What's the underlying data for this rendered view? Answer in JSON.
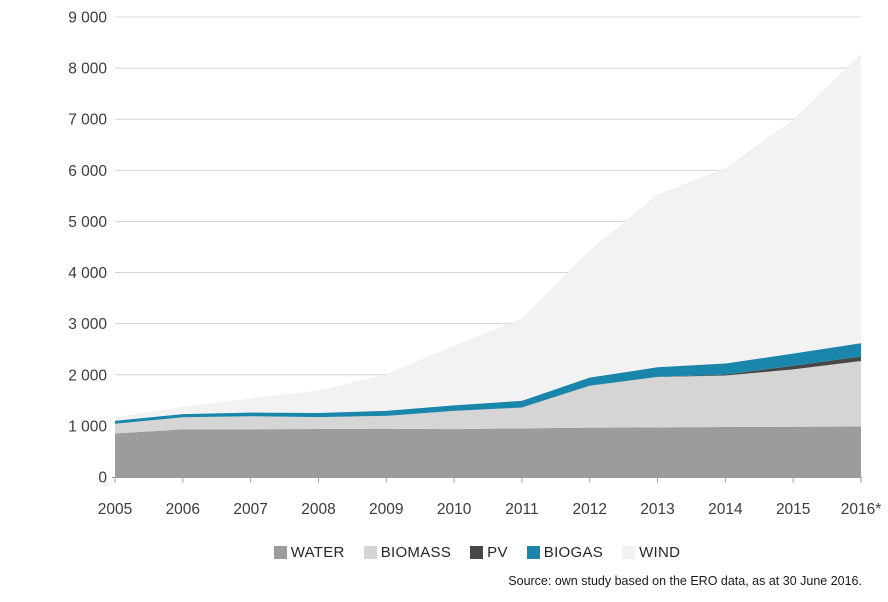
{
  "chart_data": {
    "type": "area",
    "stacked": true,
    "title": "",
    "categories": [
      "2005",
      "2006",
      "2007",
      "2008",
      "2009",
      "2010",
      "2011",
      "2012",
      "2013",
      "2014",
      "2015",
      "2016*"
    ],
    "series": [
      {
        "name": "WATER",
        "color": "#9c9c9c",
        "values": [
          852,
          931,
          934,
          940,
          945,
          937,
          951,
          966,
          971,
          977,
          982,
          989
        ]
      },
      {
        "name": "BIOMASS",
        "color": "#d5d5d5",
        "values": [
          190,
          238,
          255,
          232,
          252,
          356,
          409,
          820,
          986,
          1008,
          1123,
          1281
        ]
      },
      {
        "name": "PV",
        "color": "#474747",
        "values": [
          0,
          0,
          0,
          0,
          0,
          0,
          1,
          1,
          2,
          21,
          71,
          87
        ]
      },
      {
        "name": "BIOGAS",
        "color": "#1a86ab",
        "values": [
          32,
          36,
          45,
          54,
          71,
          82,
          103,
          131,
          162,
          188,
          212,
          234
        ]
      },
      {
        "name": "WIND",
        "color": "#f2f2f3",
        "values": [
          83,
          152,
          288,
          451,
          725,
          1180,
          1616,
          2497,
          3389,
          3834,
          4582,
          5660
        ]
      }
    ],
    "ylim": [
      0,
      9000
    ],
    "ytick_step": 1000,
    "ytick_labels": [
      "0",
      "1 000",
      "2 000",
      "3 000",
      "4 000",
      "5 000",
      "6 000",
      "7 000",
      "8 000",
      "9 000"
    ],
    "grid": "horizontal",
    "legend_position": "bottom",
    "colors": {
      "gridline": "#d4d4d4",
      "axis_line": "#9a9a9a",
      "tick_mark": "#a6a6a6",
      "axis_text": "#3c3c3c",
      "biogas_edge": "#1a86ab",
      "wind_edge": "#ededee"
    }
  },
  "source_note": "Source: own study based on the ERO data, as at 30 June 2016."
}
